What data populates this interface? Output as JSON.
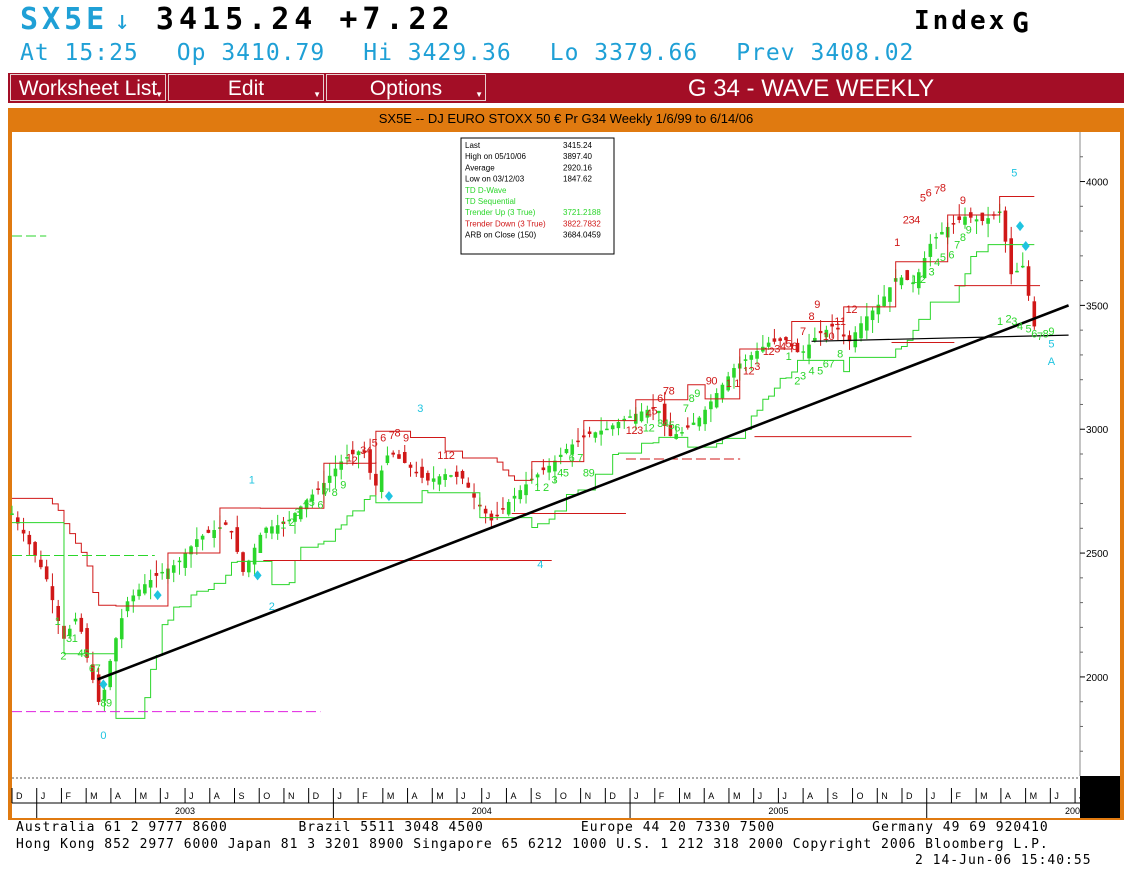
{
  "quote": {
    "ticker": "SX5E",
    "direction_arrow": "↓",
    "last": "3415.24",
    "change": "+7.22",
    "index_label": "Index",
    "index_letter": "G",
    "time": "At 15:25",
    "open": "Op 3410.79",
    "high": "Hi 3429.36",
    "low": "Lo 3379.66",
    "prev": "Prev 3408.02"
  },
  "menu": {
    "worksheet": "Worksheet List",
    "edit": "Edit",
    "options": "Options",
    "title": "G 34 - WAVE WEEKLY"
  },
  "chart_header": "SX5E -- DJ EURO STOXX 50 € Pr G34 Weekly 1/6/99 to 6/14/06",
  "legend": [
    {
      "label": "Last",
      "value": "3415.24",
      "color": "#000000"
    },
    {
      "label": "High on  05/10/06",
      "value": "3897.40",
      "color": "#000000"
    },
    {
      "label": "Average",
      "value": "2920.16",
      "color": "#000000"
    },
    {
      "label": "Low on  03/12/03",
      "value": "1847.62",
      "color": "#000000"
    },
    {
      "label": "TD D-Wave",
      "value": "",
      "color": "#2bd62b"
    },
    {
      "label": "TD Sequential",
      "value": "",
      "color": "#2bd62b"
    },
    {
      "label": "Trender Up (3 True)",
      "value": "3721.2188",
      "color": "#2bd62b"
    },
    {
      "label": "Trender Down (3 True)",
      "value": "3822.7832",
      "color": "#d01818"
    },
    {
      "label": "ARB on Close (150)",
      "value": "3684.0459",
      "color": "#000000"
    }
  ],
  "chart_data": {
    "type": "candlestick",
    "title": "SX5E -- DJ EURO STOXX 50 € Pr G34 Weekly 1/6/99 to 6/14/06",
    "ylim": [
      1600,
      4200
    ],
    "yticks": [
      2000,
      2500,
      3000,
      3500,
      4000
    ],
    "xlim": [
      "2002-12",
      "2006-06"
    ],
    "x_month_labels": [
      "D",
      "J",
      "F",
      "M",
      "A",
      "M",
      "J",
      "J",
      "A",
      "S",
      "O",
      "N",
      "D",
      "J",
      "F",
      "M",
      "A",
      "M",
      "J",
      "J",
      "A",
      "S",
      "O",
      "N",
      "D",
      "J",
      "F",
      "M",
      "A",
      "M",
      "J",
      "J",
      "A",
      "S",
      "O",
      "N",
      "D",
      "J",
      "F",
      "M",
      "A",
      "M",
      "J",
      "J",
      "A"
    ],
    "x_year_labels": [
      "2003",
      "2004",
      "2005",
      "2006"
    ],
    "close_path": [
      {
        "t": 0.0,
        "v": 2660
      },
      {
        "t": 0.5,
        "v": 2560
      },
      {
        "t": 1.2,
        "v": 2400
      },
      {
        "t": 1.8,
        "v": 2150
      },
      {
        "t": 2.3,
        "v": 2250
      },
      {
        "t": 2.6,
        "v": 2090
      },
      {
        "t": 3.1,
        "v": 1870
      },
      {
        "t": 3.5,
        "v": 2100
      },
      {
        "t": 4.0,
        "v": 2300
      },
      {
        "t": 4.6,
        "v": 2370
      },
      {
        "t": 5.2,
        "v": 2420
      },
      {
        "t": 5.8,
        "v": 2460
      },
      {
        "t": 6.5,
        "v": 2560
      },
      {
        "t": 7.2,
        "v": 2600
      },
      {
        "t": 7.6,
        "v": 2620
      },
      {
        "t": 8.1,
        "v": 2420
      },
      {
        "t": 8.8,
        "v": 2600
      },
      {
        "t": 9.6,
        "v": 2620
      },
      {
        "t": 10.2,
        "v": 2700
      },
      {
        "t": 10.9,
        "v": 2780
      },
      {
        "t": 11.6,
        "v": 2880
      },
      {
        "t": 12.3,
        "v": 2920
      },
      {
        "t": 12.7,
        "v": 2760
      },
      {
        "t": 13.2,
        "v": 2910
      },
      {
        "t": 13.8,
        "v": 2860
      },
      {
        "t": 14.5,
        "v": 2790
      },
      {
        "t": 15.2,
        "v": 2820
      },
      {
        "t": 15.8,
        "v": 2800
      },
      {
        "t": 16.3,
        "v": 2700
      },
      {
        "t": 16.8,
        "v": 2630
      },
      {
        "t": 17.5,
        "v": 2720
      },
      {
        "t": 18.2,
        "v": 2800
      },
      {
        "t": 18.9,
        "v": 2860
      },
      {
        "t": 19.5,
        "v": 2930
      },
      {
        "t": 20.2,
        "v": 2980
      },
      {
        "t": 20.8,
        "v": 3000
      },
      {
        "t": 21.4,
        "v": 3040
      },
      {
        "t": 22.0,
        "v": 3070
      },
      {
        "t": 22.6,
        "v": 3090
      },
      {
        "t": 23.0,
        "v": 2970
      },
      {
        "t": 23.5,
        "v": 2990
      },
      {
        "t": 24.1,
        "v": 3050
      },
      {
        "t": 24.7,
        "v": 3150
      },
      {
        "t": 25.3,
        "v": 3250
      },
      {
        "t": 25.9,
        "v": 3300
      },
      {
        "t": 26.5,
        "v": 3350
      },
      {
        "t": 27.1,
        "v": 3360
      },
      {
        "t": 27.6,
        "v": 3300
      },
      {
        "t": 28.2,
        "v": 3380
      },
      {
        "t": 28.8,
        "v": 3420
      },
      {
        "t": 29.3,
        "v": 3350
      },
      {
        "t": 29.8,
        "v": 3440
      },
      {
        "t": 30.4,
        "v": 3510
      },
      {
        "t": 31.0,
        "v": 3620
      },
      {
        "t": 31.6,
        "v": 3590
      },
      {
        "t": 32.2,
        "v": 3760
      },
      {
        "t": 32.8,
        "v": 3820
      },
      {
        "t": 33.4,
        "v": 3860
      },
      {
        "t": 34.0,
        "v": 3840
      },
      {
        "t": 34.6,
        "v": 3880
      },
      {
        "t": 35.0,
        "v": 3620
      },
      {
        "t": 35.4,
        "v": 3660
      },
      {
        "t": 35.8,
        "v": 3415
      }
    ],
    "trend_lines": [
      {
        "name": "Black rising trend line",
        "from": {
          "t": 3.0,
          "v": 1990
        },
        "to": {
          "t": 37.0,
          "v": 3500
        },
        "color": "#000000"
      },
      {
        "name": "Flat support line",
        "from": {
          "t": 28.0,
          "v": 3355
        },
        "to": {
          "t": 37.0,
          "v": 3380
        },
        "color": "#000000"
      }
    ],
    "yaxis_side": "right",
    "grid": false
  },
  "wave_labels": [
    {
      "text": "0",
      "t": 3.2,
      "v": 1750,
      "color": "#1fc4e0"
    },
    {
      "text": "1",
      "t": 8.4,
      "v": 2780,
      "color": "#1fc4e0"
    },
    {
      "text": "2",
      "t": 9.1,
      "v": 2270,
      "color": "#1fc4e0"
    },
    {
      "text": "3",
      "t": 14.3,
      "v": 3070,
      "color": "#1fc4e0"
    },
    {
      "text": "4",
      "t": 18.5,
      "v": 2440,
      "color": "#1fc4e0"
    },
    {
      "text": "5",
      "t": 35.1,
      "v": 4020,
      "color": "#1fc4e0"
    },
    {
      "text": "5",
      "t": 36.4,
      "v": 3330,
      "color": "#1fc4e0"
    },
    {
      "text": "A",
      "t": 36.4,
      "v": 3260,
      "color": "#1fc4e0"
    }
  ],
  "sequential_up_labels": [
    {
      "text": "1",
      "t": 1.6,
      "v": 2210
    },
    {
      "text": "2",
      "t": 1.8,
      "v": 2070
    },
    {
      "text": "3",
      "t": 2.0,
      "v": 2140
    },
    {
      "text": "1",
      "t": 2.2,
      "v": 2140
    },
    {
      "text": "4",
      "t": 2.4,
      "v": 2080
    },
    {
      "text": "5",
      "t": 2.6,
      "v": 2080
    },
    {
      "text": "6",
      "t": 2.8,
      "v": 2020
    },
    {
      "text": "7",
      "t": 3.0,
      "v": 2020
    },
    {
      "text": "8",
      "t": 3.2,
      "v": 1880
    },
    {
      "text": "9",
      "t": 3.4,
      "v": 1880
    },
    {
      "text": "1",
      "t": 9.5,
      "v": 2600
    },
    {
      "text": "2",
      "t": 9.8,
      "v": 2610
    },
    {
      "text": "3",
      "t": 10.0,
      "v": 2650
    },
    {
      "text": "4",
      "t": 10.3,
      "v": 2690
    },
    {
      "text": "5",
      "t": 10.5,
      "v": 2690
    },
    {
      "text": "6",
      "t": 10.8,
      "v": 2680
    },
    {
      "text": "7",
      "t": 11.0,
      "v": 2730
    },
    {
      "text": "8",
      "t": 11.3,
      "v": 2730
    },
    {
      "text": "9",
      "t": 11.6,
      "v": 2760
    },
    {
      "text": "1",
      "t": 18.4,
      "v": 2750
    },
    {
      "text": "2",
      "t": 18.7,
      "v": 2750
    },
    {
      "text": "3",
      "t": 19.0,
      "v": 2780
    },
    {
      "text": "4",
      "t": 19.2,
      "v": 2810
    },
    {
      "text": "5",
      "t": 19.4,
      "v": 2810
    },
    {
      "text": "6",
      "t": 19.6,
      "v": 2870
    },
    {
      "text": "7",
      "t": 19.9,
      "v": 2870
    },
    {
      "text": "8",
      "t": 20.1,
      "v": 2810
    },
    {
      "text": "9",
      "t": 20.3,
      "v": 2810
    },
    {
      "text": "1",
      "t": 22.2,
      "v": 2990
    },
    {
      "text": "2",
      "t": 22.4,
      "v": 2990
    },
    {
      "text": "3",
      "t": 22.7,
      "v": 3010
    },
    {
      "text": "4",
      "t": 22.9,
      "v": 3010
    },
    {
      "text": "5",
      "t": 23.1,
      "v": 3000
    },
    {
      "text": "6",
      "t": 23.3,
      "v": 2990
    },
    {
      "text": "7",
      "t": 23.6,
      "v": 3070
    },
    {
      "text": "8",
      "t": 23.8,
      "v": 3110
    },
    {
      "text": "9",
      "t": 24.0,
      "v": 3130
    },
    {
      "text": "1",
      "t": 27.2,
      "v": 3280
    },
    {
      "text": "2",
      "t": 27.5,
      "v": 3180
    },
    {
      "text": "3",
      "t": 27.7,
      "v": 3200
    },
    {
      "text": "4",
      "t": 28.0,
      "v": 3220
    },
    {
      "text": "5",
      "t": 28.3,
      "v": 3220
    },
    {
      "text": "6",
      "t": 28.5,
      "v": 3250
    },
    {
      "text": "7",
      "t": 28.7,
      "v": 3250
    },
    {
      "text": "8",
      "t": 29.0,
      "v": 3290
    },
    {
      "text": "1",
      "t": 31.6,
      "v": 3590
    },
    {
      "text": "2",
      "t": 31.9,
      "v": 3590
    },
    {
      "text": "3",
      "t": 32.2,
      "v": 3620
    },
    {
      "text": "4",
      "t": 32.4,
      "v": 3660
    },
    {
      "text": "5",
      "t": 32.6,
      "v": 3680
    },
    {
      "text": "6",
      "t": 32.9,
      "v": 3690
    },
    {
      "text": "7",
      "t": 33.1,
      "v": 3730
    },
    {
      "text": "8",
      "t": 33.3,
      "v": 3760
    },
    {
      "text": "9",
      "t": 33.5,
      "v": 3790
    },
    {
      "text": "1",
      "t": 34.6,
      "v": 3420
    },
    {
      "text": "2",
      "t": 34.9,
      "v": 3430
    },
    {
      "text": "3",
      "t": 35.1,
      "v": 3420
    },
    {
      "text": "4",
      "t": 35.3,
      "v": 3400
    },
    {
      "text": "5",
      "t": 35.6,
      "v": 3390
    },
    {
      "text": "6",
      "t": 35.8,
      "v": 3370
    },
    {
      "text": "7",
      "t": 36.0,
      "v": 3360
    },
    {
      "text": "8",
      "t": 36.2,
      "v": 3370
    },
    {
      "text": "9",
      "t": 36.4,
      "v": 3380
    }
  ],
  "sequential_down_labels": [
    {
      "text": "1",
      "t": 11.8,
      "v": 2870
    },
    {
      "text": "2",
      "t": 12.0,
      "v": 2860
    },
    {
      "text": "3",
      "t": 12.3,
      "v": 2900
    },
    {
      "text": "4",
      "t": 12.5,
      "v": 2900
    },
    {
      "text": "5",
      "t": 12.7,
      "v": 2930
    },
    {
      "text": "6",
      "t": 13.0,
      "v": 2950
    },
    {
      "text": "7",
      "t": 13.3,
      "v": 2960
    },
    {
      "text": "8",
      "t": 13.5,
      "v": 2970
    },
    {
      "text": "9",
      "t": 13.8,
      "v": 2950
    },
    {
      "text": "1",
      "t": 15.0,
      "v": 2880
    },
    {
      "text": "1",
      "t": 15.2,
      "v": 2880
    },
    {
      "text": "2",
      "t": 15.4,
      "v": 2880
    },
    {
      "text": "1",
      "t": 21.6,
      "v": 2980
    },
    {
      "text": "2",
      "t": 21.8,
      "v": 2980
    },
    {
      "text": "3",
      "t": 22.0,
      "v": 2980
    },
    {
      "text": "4",
      "t": 22.3,
      "v": 3050
    },
    {
      "text": "5",
      "t": 22.5,
      "v": 3060
    },
    {
      "text": "6",
      "t": 22.7,
      "v": 3110
    },
    {
      "text": "7",
      "t": 22.9,
      "v": 3140
    },
    {
      "text": "8",
      "t": 23.1,
      "v": 3140
    },
    {
      "text": "9",
      "t": 24.4,
      "v": 3180
    },
    {
      "text": "0",
      "t": 24.6,
      "v": 3180
    },
    {
      "text": "1",
      "t": 25.1,
      "v": 3170
    },
    {
      "text": "1",
      "t": 25.4,
      "v": 3170
    },
    {
      "text": "1",
      "t": 25.7,
      "v": 3220
    },
    {
      "text": "2",
      "t": 25.9,
      "v": 3220
    },
    {
      "text": "3",
      "t": 26.1,
      "v": 3240
    },
    {
      "text": "1",
      "t": 26.4,
      "v": 3300
    },
    {
      "text": "2",
      "t": 26.6,
      "v": 3300
    },
    {
      "text": "3",
      "t": 26.8,
      "v": 3310
    },
    {
      "text": "4",
      "t": 27.0,
      "v": 3320
    },
    {
      "text": "5",
      "t": 27.2,
      "v": 3330
    },
    {
      "text": "6",
      "t": 27.4,
      "v": 3320
    },
    {
      "text": "7",
      "t": 27.7,
      "v": 3380
    },
    {
      "text": "8",
      "t": 28.0,
      "v": 3440
    },
    {
      "text": "9",
      "t": 28.2,
      "v": 3490
    },
    {
      "text": "1",
      "t": 28.5,
      "v": 3360
    },
    {
      "text": "0",
      "t": 28.7,
      "v": 3360
    },
    {
      "text": "1",
      "t": 28.9,
      "v": 3420
    },
    {
      "text": "1",
      "t": 29.1,
      "v": 3420
    },
    {
      "text": "1",
      "t": 29.3,
      "v": 3470
    },
    {
      "text": "2",
      "t": 29.5,
      "v": 3470
    },
    {
      "text": "1",
      "t": 31.0,
      "v": 3740
    },
    {
      "text": "2",
      "t": 31.3,
      "v": 3830
    },
    {
      "text": "3",
      "t": 31.5,
      "v": 3830
    },
    {
      "text": "4",
      "t": 31.7,
      "v": 3830
    },
    {
      "text": "5",
      "t": 31.9,
      "v": 3920
    },
    {
      "text": "6",
      "t": 32.1,
      "v": 3940
    },
    {
      "text": "7",
      "t": 32.4,
      "v": 3950
    },
    {
      "text": "8",
      "t": 32.6,
      "v": 3960
    },
    {
      "text": "9",
      "t": 33.3,
      "v": 3910
    }
  ],
  "footer": {
    "line1": "Australia 61 2 9777 8600        Brazil 5511 3048 4500           Europe 44 20 7330 7500           Germany 49 69 920410",
    "line2": "Hong Kong 852 2977 6000 Japan 81 3 3201 8900 Singapore 65 6212 1000 U.S. 1 212 318 2000 Copyright 2006 Bloomberg L.P.",
    "line3": "2 14-Jun-06 15:40:55"
  },
  "colors": {
    "menu_bg": "#a30e26",
    "frame": "#e07a10",
    "up_candle": "#2bd62b",
    "down_candle": "#d01818",
    "wave": "#1fc4e0",
    "ticker": "#1fa0d6"
  }
}
